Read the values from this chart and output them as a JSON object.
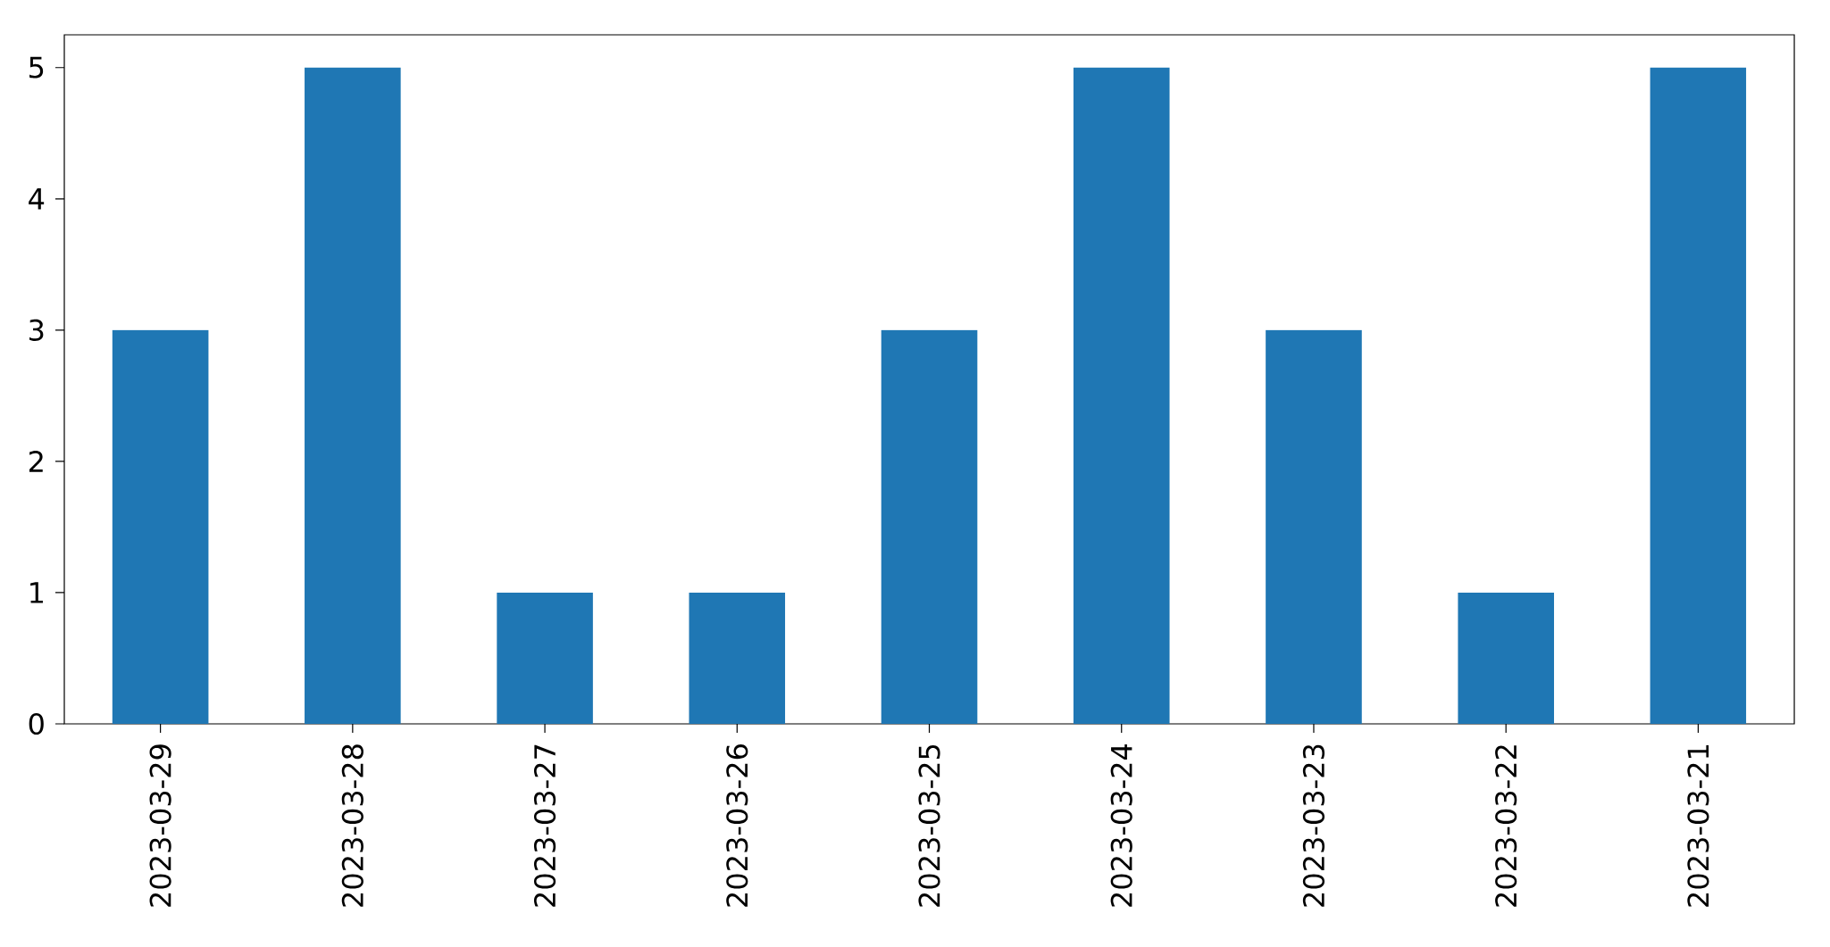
{
  "chart_data": {
    "type": "bar",
    "categories": [
      "2023-03-29",
      "2023-03-28",
      "2023-03-27",
      "2023-03-26",
      "2023-03-25",
      "2023-03-24",
      "2023-03-23",
      "2023-03-22",
      "2023-03-21"
    ],
    "values": [
      3,
      5,
      1,
      1,
      3,
      5,
      3,
      1,
      5
    ],
    "color": "#1f77b4",
    "ylim": [
      0,
      5.25
    ],
    "yticks": [
      0,
      1,
      2,
      3,
      4,
      5
    ]
  }
}
